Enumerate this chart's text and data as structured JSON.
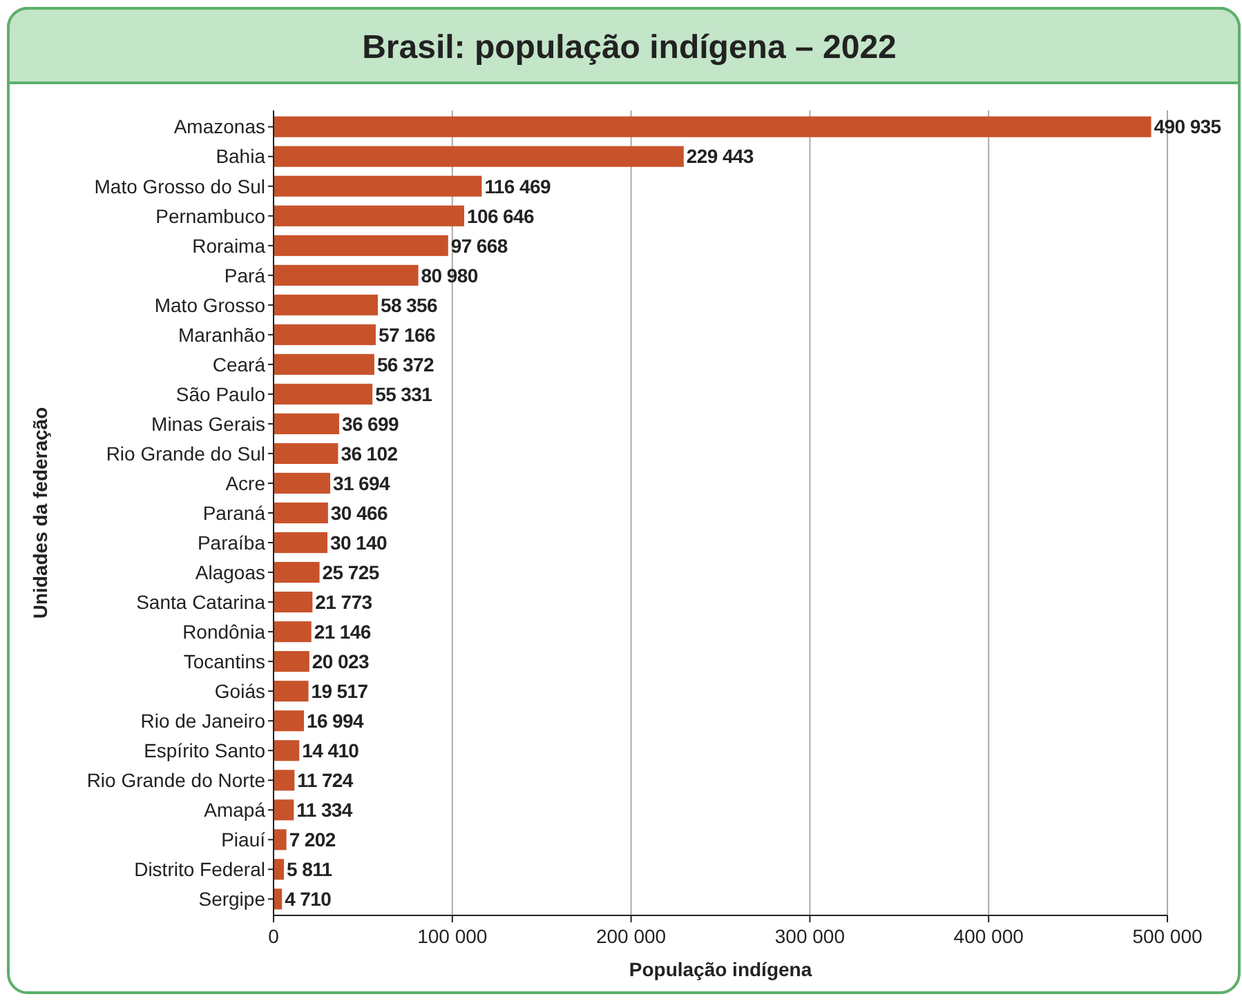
{
  "chart_data": {
    "type": "bar",
    "orientation": "horizontal",
    "title": "Brasil: população indígena – 2022",
    "xlabel": "População indígena",
    "ylabel": "Unidades da federação",
    "categories": [
      "Amazonas",
      "Bahia",
      "Mato Grosso do Sul",
      "Pernambuco",
      "Roraima",
      "Pará",
      "Mato Grosso",
      "Maranhão",
      "Ceará",
      "São Paulo",
      "Minas Gerais",
      "Rio Grande do Sul",
      "Acre",
      "Paraná",
      "Paraíba",
      "Alagoas",
      "Santa Catarina",
      "Rondônia",
      "Tocantins",
      "Goiás",
      "Rio de Janeiro",
      "Espírito Santo",
      "Rio Grande do Norte",
      "Amapá",
      "Piauí",
      "Distrito Federal",
      "Sergipe"
    ],
    "values": [
      490935,
      229443,
      116469,
      106646,
      97668,
      80980,
      58356,
      57166,
      56372,
      55331,
      36699,
      36102,
      31694,
      30466,
      30140,
      25725,
      21773,
      21146,
      20023,
      19517,
      16994,
      14410,
      11724,
      11334,
      7202,
      5811,
      4710
    ],
    "value_labels": [
      "490 935",
      "229 443",
      "116 469",
      "106 646",
      "97 668",
      "80 980",
      "58 356",
      "57 166",
      "56 372",
      "55 331",
      "36 699",
      "36 102",
      "31 694",
      "30 466",
      "30 140",
      "25 725",
      "21 773",
      "21 146",
      "20 023",
      "19 517",
      "16 994",
      "14 410",
      "11 724",
      "11 334",
      "7 202",
      "5 811",
      "4 710"
    ],
    "color": "#c8532a",
    "xlim": [
      0,
      500000
    ],
    "xticks": [
      0,
      {
        "value": 100000,
        "label": "100 000"
      },
      {
        "value": 200000,
        "label": "200 000"
      },
      {
        "value": 300000,
        "label": "300 000"
      },
      {
        "value": 400000,
        "label": "400 000"
      },
      {
        "value": 500000,
        "label": "500 000"
      }
    ],
    "grid": "x"
  }
}
